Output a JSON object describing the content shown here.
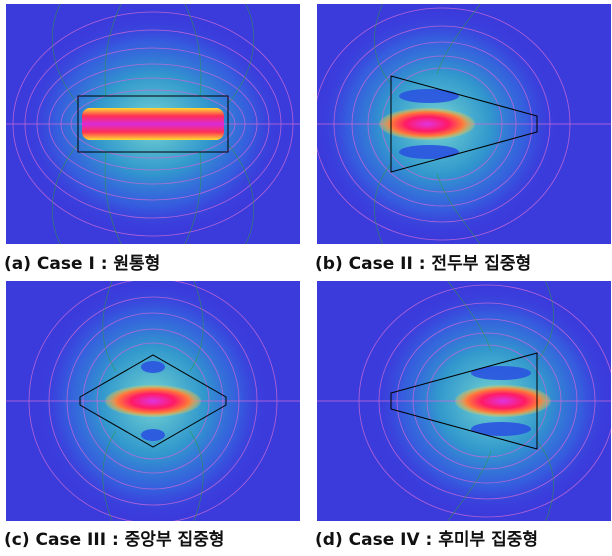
{
  "colors": {
    "background": "#3b3bdc",
    "field_high": "#ff1a66",
    "field_mid": "#22c9b0",
    "contour": "#c86ad6",
    "shape_outline": "#000000"
  },
  "panels": [
    {
      "id": "a",
      "shape": "cylinder",
      "caption": "(a) Case I : 원통형"
    },
    {
      "id": "b",
      "shape": "front-concentrated",
      "caption": "(b) Case II : 전두부 집중형"
    },
    {
      "id": "c",
      "shape": "center-concentrated",
      "caption": "(c) Case III : 중앙부 집중형"
    },
    {
      "id": "d",
      "shape": "rear-concentrated",
      "caption": "(d) Case IV : 후미부 집중형"
    }
  ]
}
